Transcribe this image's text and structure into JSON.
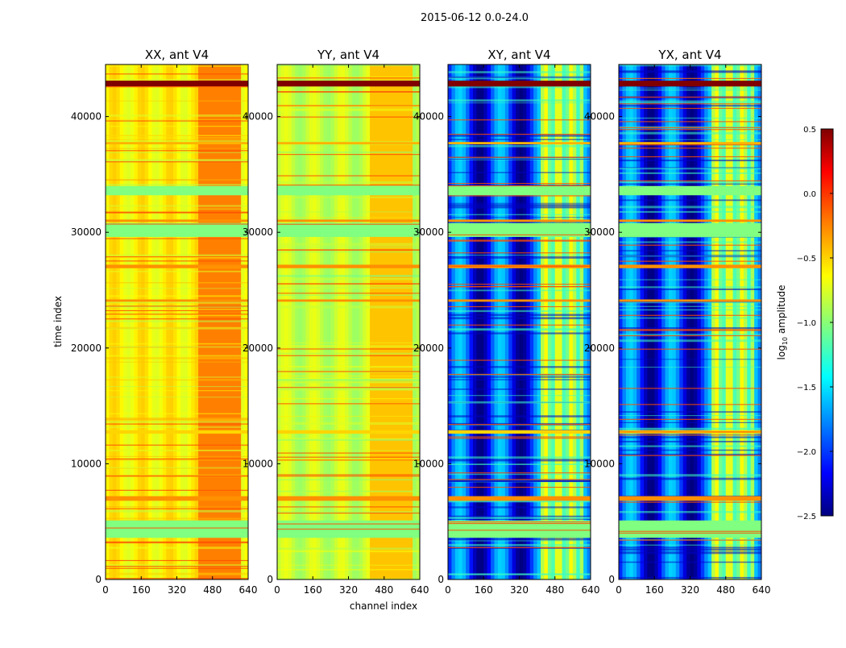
{
  "figure": {
    "suptitle": "2015-06-12 0.0-24.0",
    "xlabel": "channel index",
    "ylabel": "time index",
    "colorbar_label": "log",
    "colorbar_label_sub": "10",
    "colorbar_label_rest": " amplitude"
  },
  "chart_data": [
    {
      "type": "heatmap",
      "title": "XX, ant V4",
      "xlim": [
        0,
        640
      ],
      "ylim": [
        0,
        44500
      ],
      "xticks": [
        0,
        160,
        320,
        480,
        640
      ],
      "yticks": [
        0,
        10000,
        20000,
        30000,
        40000
      ],
      "colormap": "jet",
      "vmin": -2.5,
      "vmax": 0.5,
      "typical_log_amplitude": -0.6,
      "rfi_channel_band": [
        410,
        600
      ]
    },
    {
      "type": "heatmap",
      "title": "YY, ant V4",
      "xlim": [
        0,
        640
      ],
      "ylim": [
        0,
        44500
      ],
      "xticks": [
        0,
        160,
        320,
        480,
        640
      ],
      "yticks": [
        0,
        10000,
        20000,
        30000,
        40000
      ],
      "colormap": "jet",
      "vmin": -2.5,
      "vmax": 0.5,
      "typical_log_amplitude": -0.8,
      "rfi_channel_band": [
        410,
        600
      ]
    },
    {
      "type": "heatmap",
      "title": "XY, ant V4",
      "xlim": [
        0,
        640
      ],
      "ylim": [
        0,
        44500
      ],
      "xticks": [
        0,
        160,
        320,
        480,
        640
      ],
      "yticks": [
        0,
        10000,
        20000,
        30000,
        40000
      ],
      "colormap": "jet",
      "vmin": -2.5,
      "vmax": 0.5,
      "typical_log_amplitude": -2.0,
      "rfi_channel_band": [
        410,
        600
      ]
    },
    {
      "type": "heatmap",
      "title": "YX, ant V4",
      "xlim": [
        0,
        640
      ],
      "ylim": [
        0,
        44500
      ],
      "xticks": [
        0,
        160,
        320,
        480,
        640
      ],
      "yticks": [
        0,
        10000,
        20000,
        30000,
        40000
      ],
      "colormap": "jet",
      "vmin": -2.5,
      "vmax": 0.5,
      "typical_log_amplitude": -2.0,
      "rfi_channel_band": [
        410,
        600
      ]
    }
  ],
  "colorbar": {
    "ticks": [
      0.5,
      0.0,
      -0.5,
      -1.0,
      -1.5,
      -2.0,
      -2.5
    ],
    "tick_labels": [
      "0.5",
      "0.0",
      "−0.5",
      "−1.0",
      "−1.5",
      "−2.0",
      "−2.5"
    ],
    "colormap": "jet"
  },
  "flag_bands_time": [
    [
      3600,
      5100,
      -1.0
    ],
    [
      6800,
      7200,
      -0.3
    ],
    [
      12600,
      12900,
      -0.5
    ],
    [
      24000,
      24200,
      -0.3
    ],
    [
      26900,
      27200,
      -0.3
    ],
    [
      29600,
      30800,
      -1.0
    ],
    [
      30900,
      31100,
      -0.3
    ],
    [
      33200,
      34000,
      -1.0
    ],
    [
      37600,
      37800,
      -0.4
    ],
    [
      42600,
      43100,
      0.5
    ]
  ]
}
